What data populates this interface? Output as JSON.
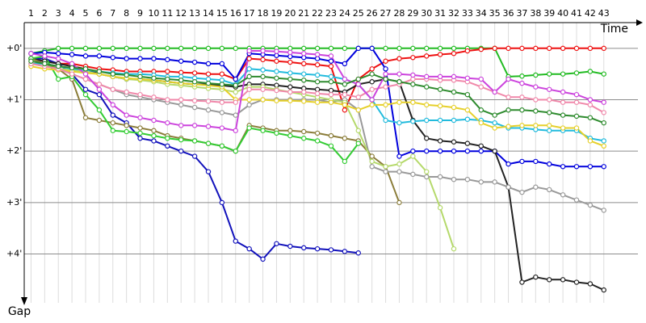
{
  "chart_data": {
    "type": "line",
    "x_label": "Time",
    "y_label": "Gap",
    "y_inverted": true,
    "grid": true,
    "markers": true,
    "x": [
      1,
      2,
      3,
      4,
      5,
      6,
      7,
      8,
      9,
      10,
      11,
      12,
      13,
      14,
      15,
      16,
      17,
      18,
      19,
      20,
      21,
      22,
      23,
      24,
      25,
      26,
      27,
      28,
      29,
      30,
      31,
      32,
      33,
      34,
      35,
      36,
      37,
      38,
      39,
      40,
      41,
      42,
      43
    ],
    "xlim": [
      0.5,
      45.5
    ],
    "xticks": [
      1,
      2,
      3,
      4,
      5,
      6,
      7,
      8,
      9,
      10,
      11,
      12,
      13,
      14,
      15,
      16,
      17,
      18,
      19,
      20,
      21,
      22,
      23,
      24,
      25,
      26,
      27,
      28,
      29,
      30,
      31,
      32,
      33,
      34,
      35,
      36,
      37,
      38,
      39,
      40,
      41,
      42,
      43
    ],
    "ylim": [
      -0.5,
      4.95
    ],
    "yticks": [
      {
        "value": 0,
        "label": "+0'"
      },
      {
        "value": 1,
        "label": "+1'"
      },
      {
        "value": 2,
        "label": "+2'"
      },
      {
        "value": 3,
        "label": "+3'"
      },
      {
        "value": 4,
        "label": "+4'"
      }
    ],
    "series": [
      {
        "color": "#22bb22",
        "values": [
          0.1,
          0.05,
          0,
          0,
          0,
          0,
          0,
          0,
          0,
          0,
          0,
          0,
          0,
          0,
          0,
          0,
          0,
          0,
          0,
          0,
          0,
          0,
          0,
          0,
          0,
          0,
          0,
          0,
          0,
          0,
          0,
          0,
          0,
          0,
          0,
          0.55,
          0.54,
          0.52,
          0.5,
          0.5,
          0.48,
          0.45,
          0.5
        ]
      },
      {
        "color": "#ee1111",
        "values": [
          0.2,
          0.25,
          0.3,
          0.3,
          0.35,
          0.4,
          0.42,
          0.45,
          0.45,
          0.45,
          0.45,
          0.47,
          0.48,
          0.5,
          0.5,
          0.6,
          0.2,
          0.22,
          0.25,
          0.27,
          0.3,
          0.32,
          0.35,
          1.2,
          0.6,
          0.4,
          0.25,
          0.2,
          0.18,
          0.15,
          0.12,
          0.1,
          0.05,
          0.02,
          0,
          0,
          0,
          0,
          0,
          0,
          0,
          0,
          0
        ]
      },
      {
        "color": "#0000dd",
        "values": [
          0.1,
          0.08,
          0.1,
          0.12,
          0.15,
          0.15,
          0.18,
          0.2,
          0.2,
          0.2,
          0.22,
          0.25,
          0.27,
          0.3,
          0.3,
          0.6,
          0.1,
          0.12,
          0.14,
          0.16,
          0.18,
          0.2,
          0.25,
          0.3,
          0,
          0,
          0.4,
          2.1,
          2,
          2,
          2,
          2,
          2,
          2,
          2,
          2.25,
          2.2,
          2.2,
          2.25,
          2.3,
          2.3,
          2.3,
          2.3
        ]
      },
      {
        "color": "#1111bb",
        "values": [
          0.2,
          0.2,
          0.3,
          0.5,
          0.8,
          0.9,
          1.3,
          1.45,
          1.75,
          1.8,
          1.9,
          2,
          2.1,
          2.4,
          3,
          3.75,
          3.9,
          4.1,
          3.8,
          3.85,
          3.88,
          3.9,
          3.92,
          3.95,
          3.98,
          null,
          null,
          null,
          null,
          null,
          null,
          null,
          null,
          null,
          null,
          null,
          null,
          null,
          null,
          null,
          null,
          null,
          null
        ]
      },
      {
        "color": "#222222",
        "values": [
          0.2,
          0.25,
          0.3,
          0.35,
          0.4,
          0.5,
          0.55,
          0.6,
          0.6,
          0.62,
          0.65,
          0.68,
          0.7,
          0.7,
          0.72,
          0.75,
          0.7,
          0.7,
          0.72,
          0.75,
          0.78,
          0.8,
          0.82,
          0.85,
          0.7,
          0.65,
          0.6,
          0.65,
          1.4,
          1.75,
          1.8,
          1.82,
          1.85,
          1.9,
          2,
          2.7,
          4.55,
          4.45,
          4.5,
          4.5,
          4.55,
          4.58,
          4.7
        ]
      },
      {
        "color": "#999999",
        "values": [
          0.2,
          0.3,
          0.4,
          0.5,
          0.6,
          0.7,
          0.8,
          0.9,
          0.95,
          1,
          1.05,
          1.1,
          1.15,
          1.2,
          1.25,
          1.3,
          1.1,
          1,
          1,
          1,
          1,
          1,
          1.05,
          1,
          1.2,
          2.3,
          2.4,
          2.4,
          2.45,
          2.5,
          2.5,
          2.55,
          2.55,
          2.6,
          2.6,
          2.7,
          2.8,
          2.7,
          2.75,
          2.85,
          2.95,
          3.05,
          3.15
        ]
      },
      {
        "color": "#8b7d3a",
        "values": [
          0.2,
          0.3,
          0.4,
          0.6,
          1.35,
          1.4,
          1.45,
          1.5,
          1.55,
          1.6,
          1.7,
          1.75,
          1.8,
          1.85,
          1.9,
          2,
          1.5,
          1.55,
          1.6,
          1.6,
          1.62,
          1.65,
          1.7,
          1.75,
          1.8,
          2.1,
          2.3,
          3,
          null,
          null,
          null,
          null,
          null,
          null,
          null,
          null,
          null,
          null,
          null,
          null,
          null,
          null,
          null
        ]
      },
      {
        "color": "#b5d96b",
        "values": [
          0.3,
          0.35,
          0.4,
          0.42,
          0.45,
          0.5,
          0.55,
          0.6,
          0.62,
          0.65,
          0.7,
          0.72,
          0.75,
          0.78,
          0.8,
          0.85,
          0.75,
          0.75,
          0.8,
          0.85,
          0.9,
          0.95,
          1,
          1.05,
          1.6,
          2.2,
          2.3,
          2.25,
          2.1,
          2.4,
          3.1,
          3.9,
          null,
          null,
          null,
          null,
          null,
          null,
          null,
          null,
          null,
          null,
          null
        ]
      },
      {
        "color": "#33cc33",
        "values": [
          0.2,
          0.15,
          0.6,
          0.55,
          0.9,
          1.2,
          1.6,
          1.62,
          1.65,
          1.7,
          1.75,
          1.78,
          1.8,
          1.85,
          1.9,
          2,
          1.55,
          1.6,
          1.65,
          1.7,
          1.75,
          1.8,
          1.9,
          2.2,
          1.85,
          null,
          null,
          null,
          null,
          null,
          null,
          null,
          null,
          null,
          null,
          null,
          null,
          null,
          null,
          null,
          null,
          null,
          null
        ]
      },
      {
        "color": "#22bbdd",
        "values": [
          0.3,
          0.3,
          0.35,
          0.4,
          0.42,
          0.45,
          0.48,
          0.5,
          0.5,
          0.52,
          0.55,
          0.55,
          0.58,
          0.6,
          0.62,
          0.7,
          0.4,
          0.42,
          0.45,
          0.48,
          0.5,
          0.52,
          0.55,
          0.6,
          0.7,
          1,
          1.4,
          1.45,
          1.42,
          1.4,
          1.4,
          1.4,
          1.38,
          1.4,
          1.45,
          1.55,
          1.55,
          1.58,
          1.6,
          1.6,
          1.6,
          1.75,
          1.8
        ]
      },
      {
        "color": "#e6d02a",
        "values": [
          0.35,
          0.4,
          0.42,
          0.45,
          0.48,
          0.5,
          0.55,
          0.58,
          0.6,
          0.62,
          0.65,
          0.68,
          0.7,
          0.72,
          0.75,
          1,
          1,
          1,
          1.02,
          1.02,
          1.03,
          1.05,
          1.05,
          1.1,
          1.2,
          1.1,
          1.1,
          1.05,
          1.05,
          1.1,
          1.12,
          1.15,
          1.2,
          1.45,
          1.55,
          1.52,
          1.5,
          1.5,
          1.5,
          1.55,
          1.55,
          1.8,
          1.9
        ]
      },
      {
        "color": "#f088aa",
        "values": [
          0.3,
          0.35,
          0.4,
          0.5,
          0.6,
          0.7,
          0.8,
          0.85,
          0.9,
          0.95,
          1,
          1,
          1.02,
          1.03,
          1.05,
          1.05,
          0.8,
          0.8,
          0.82,
          0.85,
          0.85,
          0.88,
          0.9,
          0.9,
          0.95,
          0.8,
          0.75,
          0.7,
          0.6,
          0.6,
          0.62,
          0.62,
          0.65,
          0.75,
          0.85,
          0.95,
          0.95,
          1,
          1,
          1.05,
          1.05,
          1.1,
          1.25
        ]
      },
      {
        "color": "#cc44dd",
        "values": [
          0.1,
          0.15,
          0.2,
          0.3,
          0.5,
          0.8,
          1.1,
          1.3,
          1.35,
          1.4,
          1.45,
          1.5,
          1.5,
          1.52,
          1.55,
          1.6,
          0.05,
          0.05,
          0.06,
          0.08,
          0.1,
          0.12,
          0.15,
          0.6,
          0.7,
          1,
          0.5,
          0.5,
          0.52,
          0.55,
          0.55,
          0.55,
          0.58,
          0.6,
          0.85,
          0.6,
          0.68,
          0.75,
          0.8,
          0.85,
          0.9,
          1,
          1.05
        ]
      },
      {
        "color": "#2e8b2e",
        "values": [
          0.25,
          0.3,
          0.35,
          0.38,
          0.4,
          0.45,
          0.5,
          0.52,
          0.55,
          0.58,
          0.6,
          0.62,
          0.65,
          0.68,
          0.7,
          0.72,
          0.55,
          0.55,
          0.58,
          0.6,
          0.62,
          0.65,
          0.65,
          0.7,
          0.6,
          0.5,
          0.6,
          0.65,
          0.7,
          0.75,
          0.8,
          0.85,
          0.9,
          1.2,
          1.3,
          1.2,
          1.2,
          1.22,
          1.25,
          1.3,
          1.32,
          1.35,
          1.45
        ]
      }
    ]
  }
}
